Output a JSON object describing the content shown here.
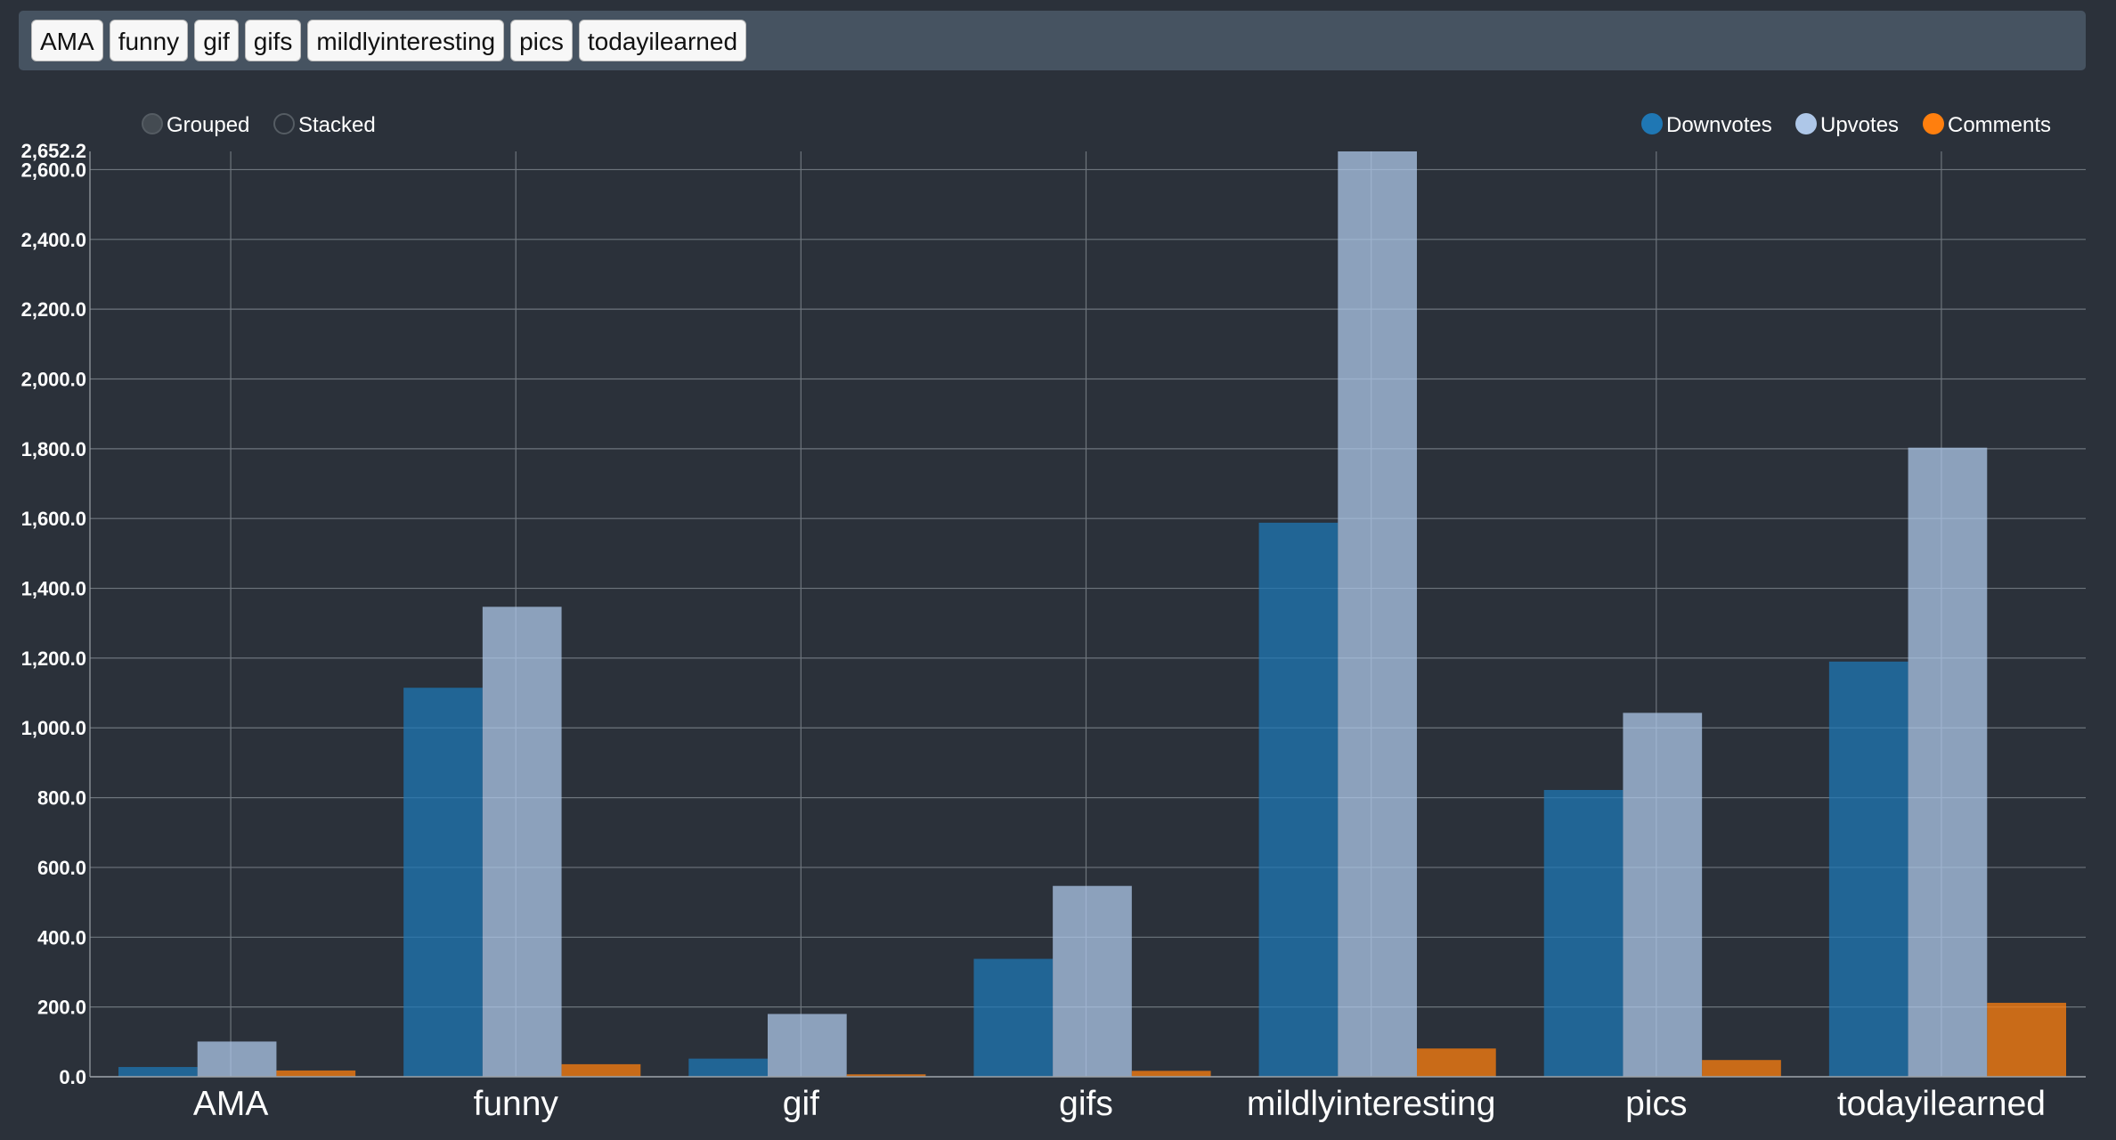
{
  "toolbar": {
    "tags": [
      "AMA",
      "funny",
      "gif",
      "gifs",
      "mildlyinteresting",
      "pics",
      "todayilearned"
    ]
  },
  "controls": {
    "grouped_label": "Grouped",
    "stacked_label": "Stacked",
    "selected": "Grouped"
  },
  "chart_data": {
    "type": "bar",
    "mode": "grouped",
    "categories": [
      "AMA",
      "funny",
      "gif",
      "gifs",
      "mildlyinteresting",
      "pics",
      "todayilearned"
    ],
    "series": [
      {
        "name": "Downvotes",
        "color": "#1f77b4",
        "values": [
          28,
          1115,
          52,
          338,
          1588,
          822,
          1190
        ]
      },
      {
        "name": "Upvotes",
        "color": "#aec7e8",
        "values": [
          101,
          1347,
          180,
          547,
          2652.2,
          1043,
          1803
        ]
      },
      {
        "name": "Comments",
        "color": "#ff7f0e",
        "values": [
          18,
          36,
          7,
          17,
          81,
          48,
          212
        ]
      }
    ],
    "ylim": [
      0,
      2652.2
    ],
    "y_ticks": [
      "0.0",
      "200.0",
      "400.0",
      "600.0",
      "800.0",
      "1,000.0",
      "1,200.0",
      "1,400.0",
      "1,600.0",
      "1,800.0",
      "2,000.0",
      "2,200.0",
      "2,400.0",
      "2,600.0"
    ],
    "y_max_label": "2,652.2",
    "grid": true,
    "legend_position": "top-right",
    "bar_opacity": 0.75
  }
}
